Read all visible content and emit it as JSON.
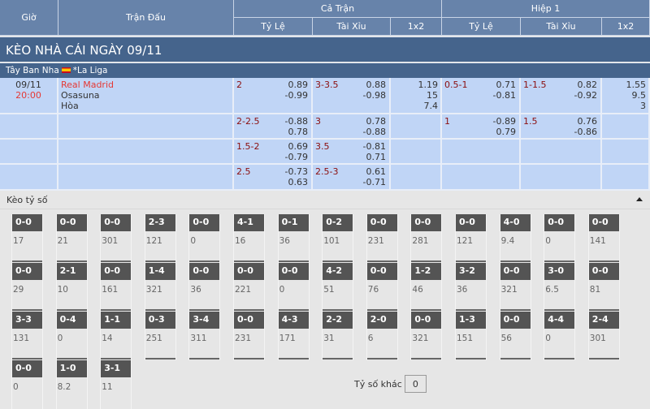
{
  "header": {
    "gio": "Giờ",
    "tran_dau": "Trận Đấu",
    "ca_tran": "Cả Trận",
    "hiep1": "Hiệp 1",
    "ty_le": "Tỷ Lệ",
    "tai_xiu": "Tài Xỉu",
    "x12": "1x2"
  },
  "title": "KÈO NHÀ CÁI NGÀY 09/11",
  "league": {
    "country": "Tây Ban Nha",
    "name": "*La Liga"
  },
  "match": {
    "date": "09/11",
    "time": "20:00",
    "home": "Real Madrid",
    "away": "Osasuna",
    "draw": "Hòa"
  },
  "rows": [
    {
      "ft_hdp": "2",
      "ft_hdp_o": [
        "0.89",
        "-0.99"
      ],
      "ft_ou": "3-3.5",
      "ft_ou_o": [
        "0.88",
        "-0.98"
      ],
      "ft_1x2": [
        "1.19",
        "15",
        "7.4"
      ],
      "h1_hdp": "0.5-1",
      "h1_hdp_o": [
        "0.71",
        "-0.81"
      ],
      "h1_ou": "1-1.5",
      "h1_ou_o": [
        "0.82",
        "-0.92"
      ],
      "h1_1x2": [
        "1.55",
        "9.5",
        "3"
      ]
    },
    {
      "ft_hdp": "2-2.5",
      "ft_hdp_o": [
        "-0.88",
        "0.78"
      ],
      "ft_ou": "3",
      "ft_ou_o": [
        "0.78",
        "-0.88"
      ],
      "h1_hdp": "1",
      "h1_hdp_o": [
        "-0.89",
        "0.79"
      ],
      "h1_ou": "1.5",
      "h1_ou_o": [
        "0.76",
        "-0.86"
      ]
    },
    {
      "ft_hdp": "1.5-2",
      "ft_hdp_o": [
        "0.69",
        "-0.79"
      ],
      "ft_ou": "3.5",
      "ft_ou_o": [
        "-0.81",
        "0.71"
      ]
    },
    {
      "ft_hdp": "2.5",
      "ft_hdp_o": [
        "-0.73",
        "0.63"
      ],
      "ft_ou": "2.5-3",
      "ft_ou_o": [
        "0.61",
        "-0.71"
      ]
    }
  ],
  "correct_score": {
    "label": "Kèo tỷ số",
    "other_label": "Tỷ số khác",
    "other_value": "0",
    "items": [
      [
        "0-0",
        "17"
      ],
      [
        "0-0",
        "21"
      ],
      [
        "0-0",
        "301"
      ],
      [
        "2-3",
        "121"
      ],
      [
        "0-0",
        "0"
      ],
      [
        "4-1",
        "16"
      ],
      [
        "0-1",
        "36"
      ],
      [
        "0-2",
        "101"
      ],
      [
        "0-0",
        "231"
      ],
      [
        "0-0",
        "281"
      ],
      [
        "0-0",
        "121"
      ],
      [
        "4-0",
        "9.4"
      ],
      [
        "0-0",
        "0"
      ],
      [
        "0-0",
        "141"
      ],
      [
        "0-0",
        "29"
      ],
      [
        "2-1",
        "10"
      ],
      [
        "0-0",
        "161"
      ],
      [
        "1-4",
        "321"
      ],
      [
        "0-0",
        "36"
      ],
      [
        "0-0",
        "221"
      ],
      [
        "0-0",
        "0"
      ],
      [
        "4-2",
        "51"
      ],
      [
        "0-0",
        "76"
      ],
      [
        "1-2",
        "46"
      ],
      [
        "3-2",
        "36"
      ],
      [
        "0-0",
        "321"
      ],
      [
        "3-0",
        "6.5"
      ],
      [
        "0-0",
        "81"
      ],
      [
        "3-3",
        "131"
      ],
      [
        "0-4",
        "0"
      ],
      [
        "1-1",
        "14"
      ],
      [
        "0-3",
        "251"
      ],
      [
        "3-4",
        "311"
      ],
      [
        "0-0",
        "231"
      ],
      [
        "4-3",
        "171"
      ],
      [
        "2-2",
        "31"
      ],
      [
        "2-0",
        "6"
      ],
      [
        "0-0",
        "321"
      ],
      [
        "1-3",
        "151"
      ],
      [
        "0-0",
        "56"
      ],
      [
        "4-4",
        "0"
      ],
      [
        "2-4",
        "301"
      ],
      [
        "0-0",
        "0"
      ],
      [
        "1-0",
        "8.2"
      ],
      [
        "3-1",
        "11"
      ]
    ]
  }
}
